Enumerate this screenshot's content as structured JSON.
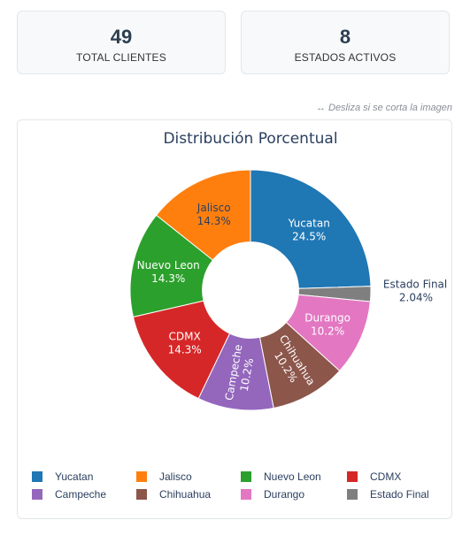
{
  "stats": {
    "total_clients": {
      "value": "49",
      "label": "TOTAL CLIENTES"
    },
    "active_states": {
      "value": "8",
      "label": "ESTADOS ACTIVOS"
    }
  },
  "hint": "↔ Desliza si se corta la imagen",
  "chart_data": {
    "type": "pie",
    "title": "Distribución Porcentual",
    "hole": 0.4,
    "legend_position": "bottom",
    "categories": [
      "Yucatan",
      "Estado Final",
      "Durango",
      "Chihuahua",
      "Campeche",
      "CDMX",
      "Nuevo Leon",
      "Jalisco"
    ],
    "values": [
      24.5,
      2.04,
      10.2,
      10.2,
      10.2,
      14.3,
      14.3,
      14.3
    ],
    "value_labels": [
      "24.5%",
      "2.04%",
      "10.2%",
      "10.2%",
      "10.2%",
      "14.3%",
      "14.3%",
      "14.3%"
    ],
    "colors": [
      "#1f77b4",
      "#7f7f7f",
      "#e377c2",
      "#8c564b",
      "#9467bd",
      "#d62728",
      "#2ca02c",
      "#ff7f0e"
    ],
    "legend_order": [
      "Yucatan",
      "Jalisco",
      "Nuevo Leon",
      "CDMX",
      "Campeche",
      "Chihuahua",
      "Durango",
      "Estado Final"
    ]
  }
}
